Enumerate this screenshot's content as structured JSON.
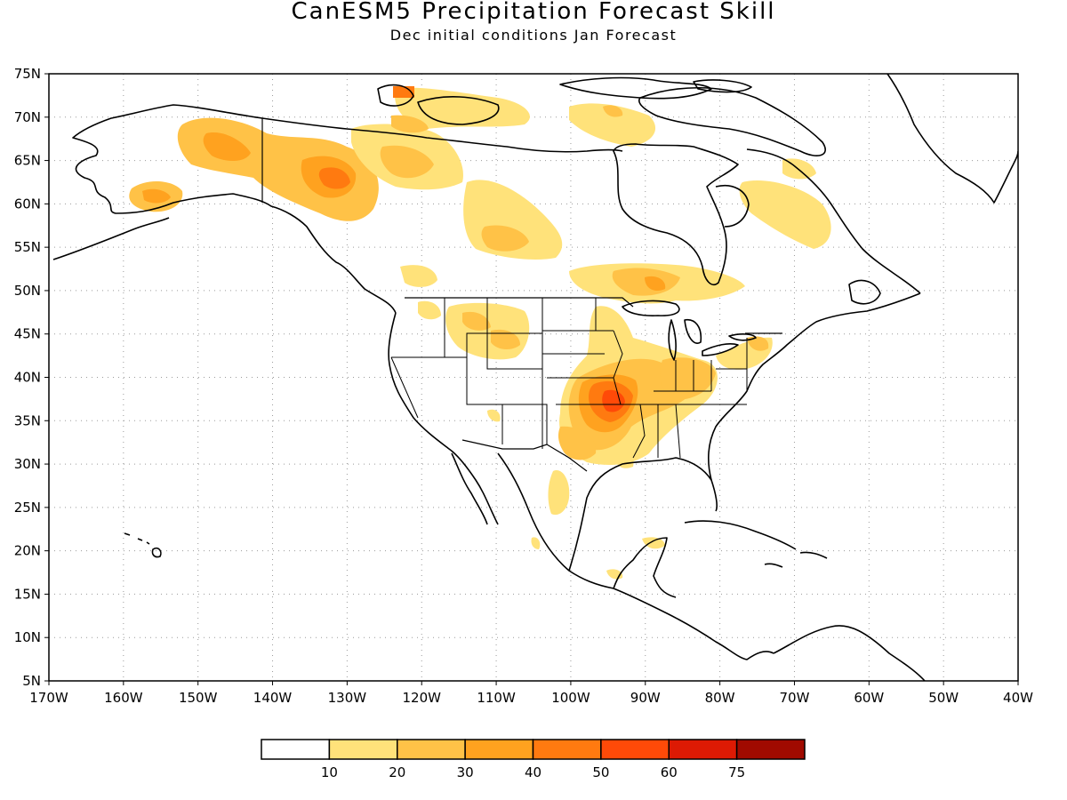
{
  "map": {
    "title": "CanESM5 Precipitation Forecast Skill",
    "subtitle": "Dec initial conditions  Jan Forecast",
    "lon_labels": [
      "170W",
      "160W",
      "150W",
      "140W",
      "130W",
      "120W",
      "110W",
      "100W",
      "90W",
      "80W",
      "70W",
      "60W",
      "50W",
      "40W"
    ],
    "lat_labels": [
      "75N",
      "70N",
      "65N",
      "60N",
      "55N",
      "50N",
      "45N",
      "40N",
      "35N",
      "30N",
      "25N",
      "20N",
      "15N",
      "10N",
      "5N"
    ],
    "colorbar": {
      "labels": [
        "10",
        "20",
        "30",
        "40",
        "50",
        "60",
        "75"
      ],
      "colors": [
        "#ffffff",
        "#ffe27a",
        "#ffc247",
        "#ffa21f",
        "#ff7a10",
        "#ff4a08",
        "#dd1a04",
        "#a00a00"
      ]
    },
    "colors": {
      "outline": "#000000",
      "grid": "#9a9a9a"
    }
  }
}
